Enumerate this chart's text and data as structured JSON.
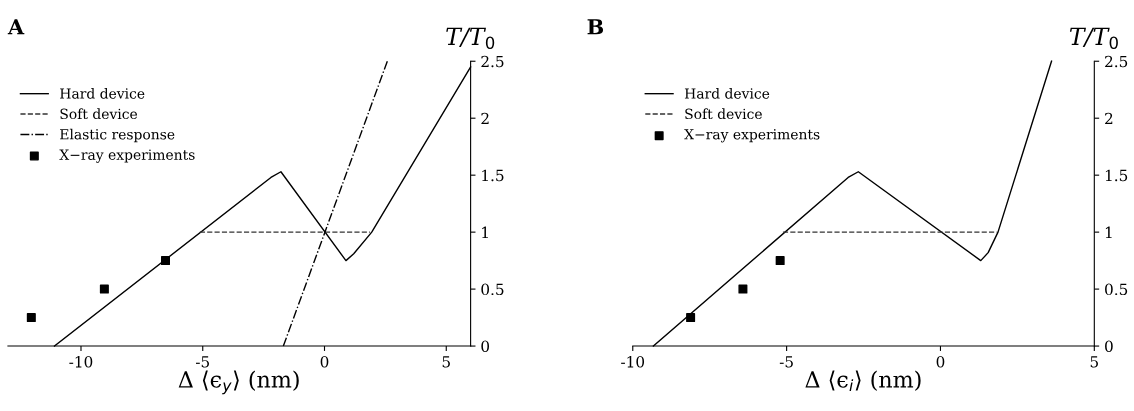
{
  "chart_data": [
    {
      "type": "line",
      "title": "A",
      "xlabel": "Δ ⟨ϵ$_{y}$⟩ (nm)",
      "ylabel": "T/T$_{0}$",
      "xlim": [
        -13,
        6
      ],
      "ylim": [
        0,
        2.5
      ],
      "xticks": [
        -10,
        -5,
        0,
        5
      ],
      "yticks": [
        0,
        0.5,
        1,
        1.5,
        2,
        2.5
      ],
      "grid": false,
      "legend": "top left",
      "series": [
        {
          "name": "Hard device",
          "color": "#000000",
          "line_style": "solid",
          "x": [
            -11.09,
            -2.2,
            -1.79,
            0.88,
            1.2,
            1.94,
            6.0
          ],
          "values": [
            0,
            1.48,
            1.53,
            0.75,
            0.81,
            1.0,
            2.45
          ]
        },
        {
          "name": "Soft device",
          "color": "#333333",
          "line_style": "dashed",
          "x": [
            -5.12,
            1.87
          ],
          "values": [
            1.0,
            1.0
          ]
        },
        {
          "name": "Elastic response",
          "color": "#000000",
          "line_style": "dashdot",
          "x": [
            -1.69,
            2.58
          ],
          "values": [
            0,
            2.5
          ]
        },
        {
          "name": "X−ray experiments",
          "type": "scatter",
          "marker": "square",
          "color": "#000000",
          "x": [
            -12.04,
            -9.04,
            -6.53
          ],
          "values": [
            0.25,
            0.5,
            0.75
          ]
        }
      ]
    },
    {
      "type": "line",
      "title": "B",
      "xlabel": "Δ ⟨ϵ$_{i}$⟩ (nm)",
      "ylabel": "T/T$_{0}$",
      "xlim": [
        -10,
        5
      ],
      "ylim": [
        0,
        2.5
      ],
      "xticks": [
        -10,
        -5,
        0,
        5
      ],
      "yticks": [
        0,
        0.5,
        1,
        1.5,
        2,
        2.5
      ],
      "grid": false,
      "legend": "top left",
      "series": [
        {
          "name": "Hard device",
          "color": "#000000",
          "line_style": "solid",
          "x": [
            -9.33,
            -3.0,
            -2.67,
            1.31,
            1.55,
            1.87,
            3.61
          ],
          "values": [
            0,
            1.48,
            1.53,
            0.75,
            0.82,
            1.0,
            2.5
          ]
        },
        {
          "name": "Soft device",
          "color": "#333333",
          "line_style": "dashed",
          "x": [
            -5.12,
            1.83
          ],
          "values": [
            1.0,
            1.0
          ]
        },
        {
          "name": "X−ray experiments",
          "type": "scatter",
          "marker": "square",
          "color": "#000000",
          "x": [
            -8.12,
            -6.42,
            -5.21
          ],
          "values": [
            0.25,
            0.5,
            0.75
          ]
        }
      ]
    }
  ]
}
